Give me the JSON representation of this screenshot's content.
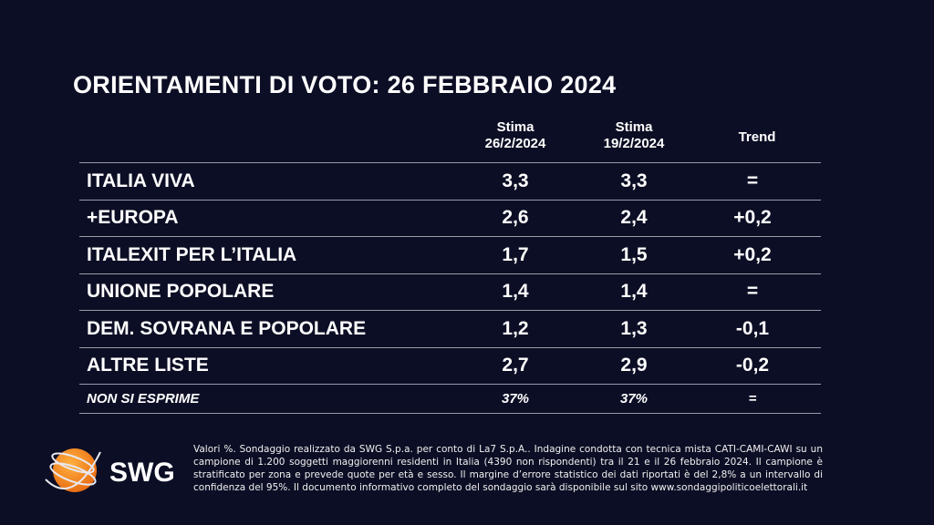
{
  "title": "ORIENTAMENTI DI VOTO: 26 FEBBRAIO 2024",
  "headers": {
    "col1": "Stima\n26/2/2024",
    "col1a": "Stima",
    "col1b": "26/2/2024",
    "col2a": "Stima",
    "col2b": "19/2/2024",
    "trend": "Trend"
  },
  "rows": [
    {
      "name": "ITALIA VIVA",
      "v1": "3,3",
      "v2": "3,3",
      "trend": "="
    },
    {
      "name": "+EUROPA",
      "v1": "2,6",
      "v2": "2,4",
      "trend": "+0,2"
    },
    {
      "name": "ITALEXIT PER L’ITALIA",
      "v1": "1,7",
      "v2": "1,5",
      "trend": "+0,2"
    },
    {
      "name": "UNIONE POPOLARE",
      "v1": "1,4",
      "v2": "1,4",
      "trend": "="
    },
    {
      "name": "DEM. SOVRANA E POPOLARE",
      "v1": "1,2",
      "v2": "1,3",
      "trend": "-0,1"
    },
    {
      "name": "ALTRE LISTE",
      "v1": "2,7",
      "v2": "2,9",
      "trend": "-0,2"
    },
    {
      "name": "NON SI ESPRIME",
      "v1": "37%",
      "v2": "37%",
      "trend": "="
    }
  ],
  "note": "Valori %. Sondaggio realizzato da SWG S.p.a. per conto di La7 S.p.A.. Indagine condotta con tecnica mista CATI-CAMI-CAWI su un campione di 1.200 soggetti maggiorenni residenti in Italia (4390 non rispondenti) tra il 21 e il 26 febbraio 2024. Il campione è stratificato per zona e prevede quote per età e sesso. Il margine d’errore statistico dei dati riportati è del 2,8% a un intervallo di confidenza del 95%. Il documento informativo completo del sondaggio sarà disponibile sul sito www.sondaggipoliticoelettorali.it",
  "logo": {
    "text": "SWG",
    "color": "#f28c1c"
  },
  "colors": {
    "background": "#0c0e25",
    "text": "#ffffff"
  }
}
